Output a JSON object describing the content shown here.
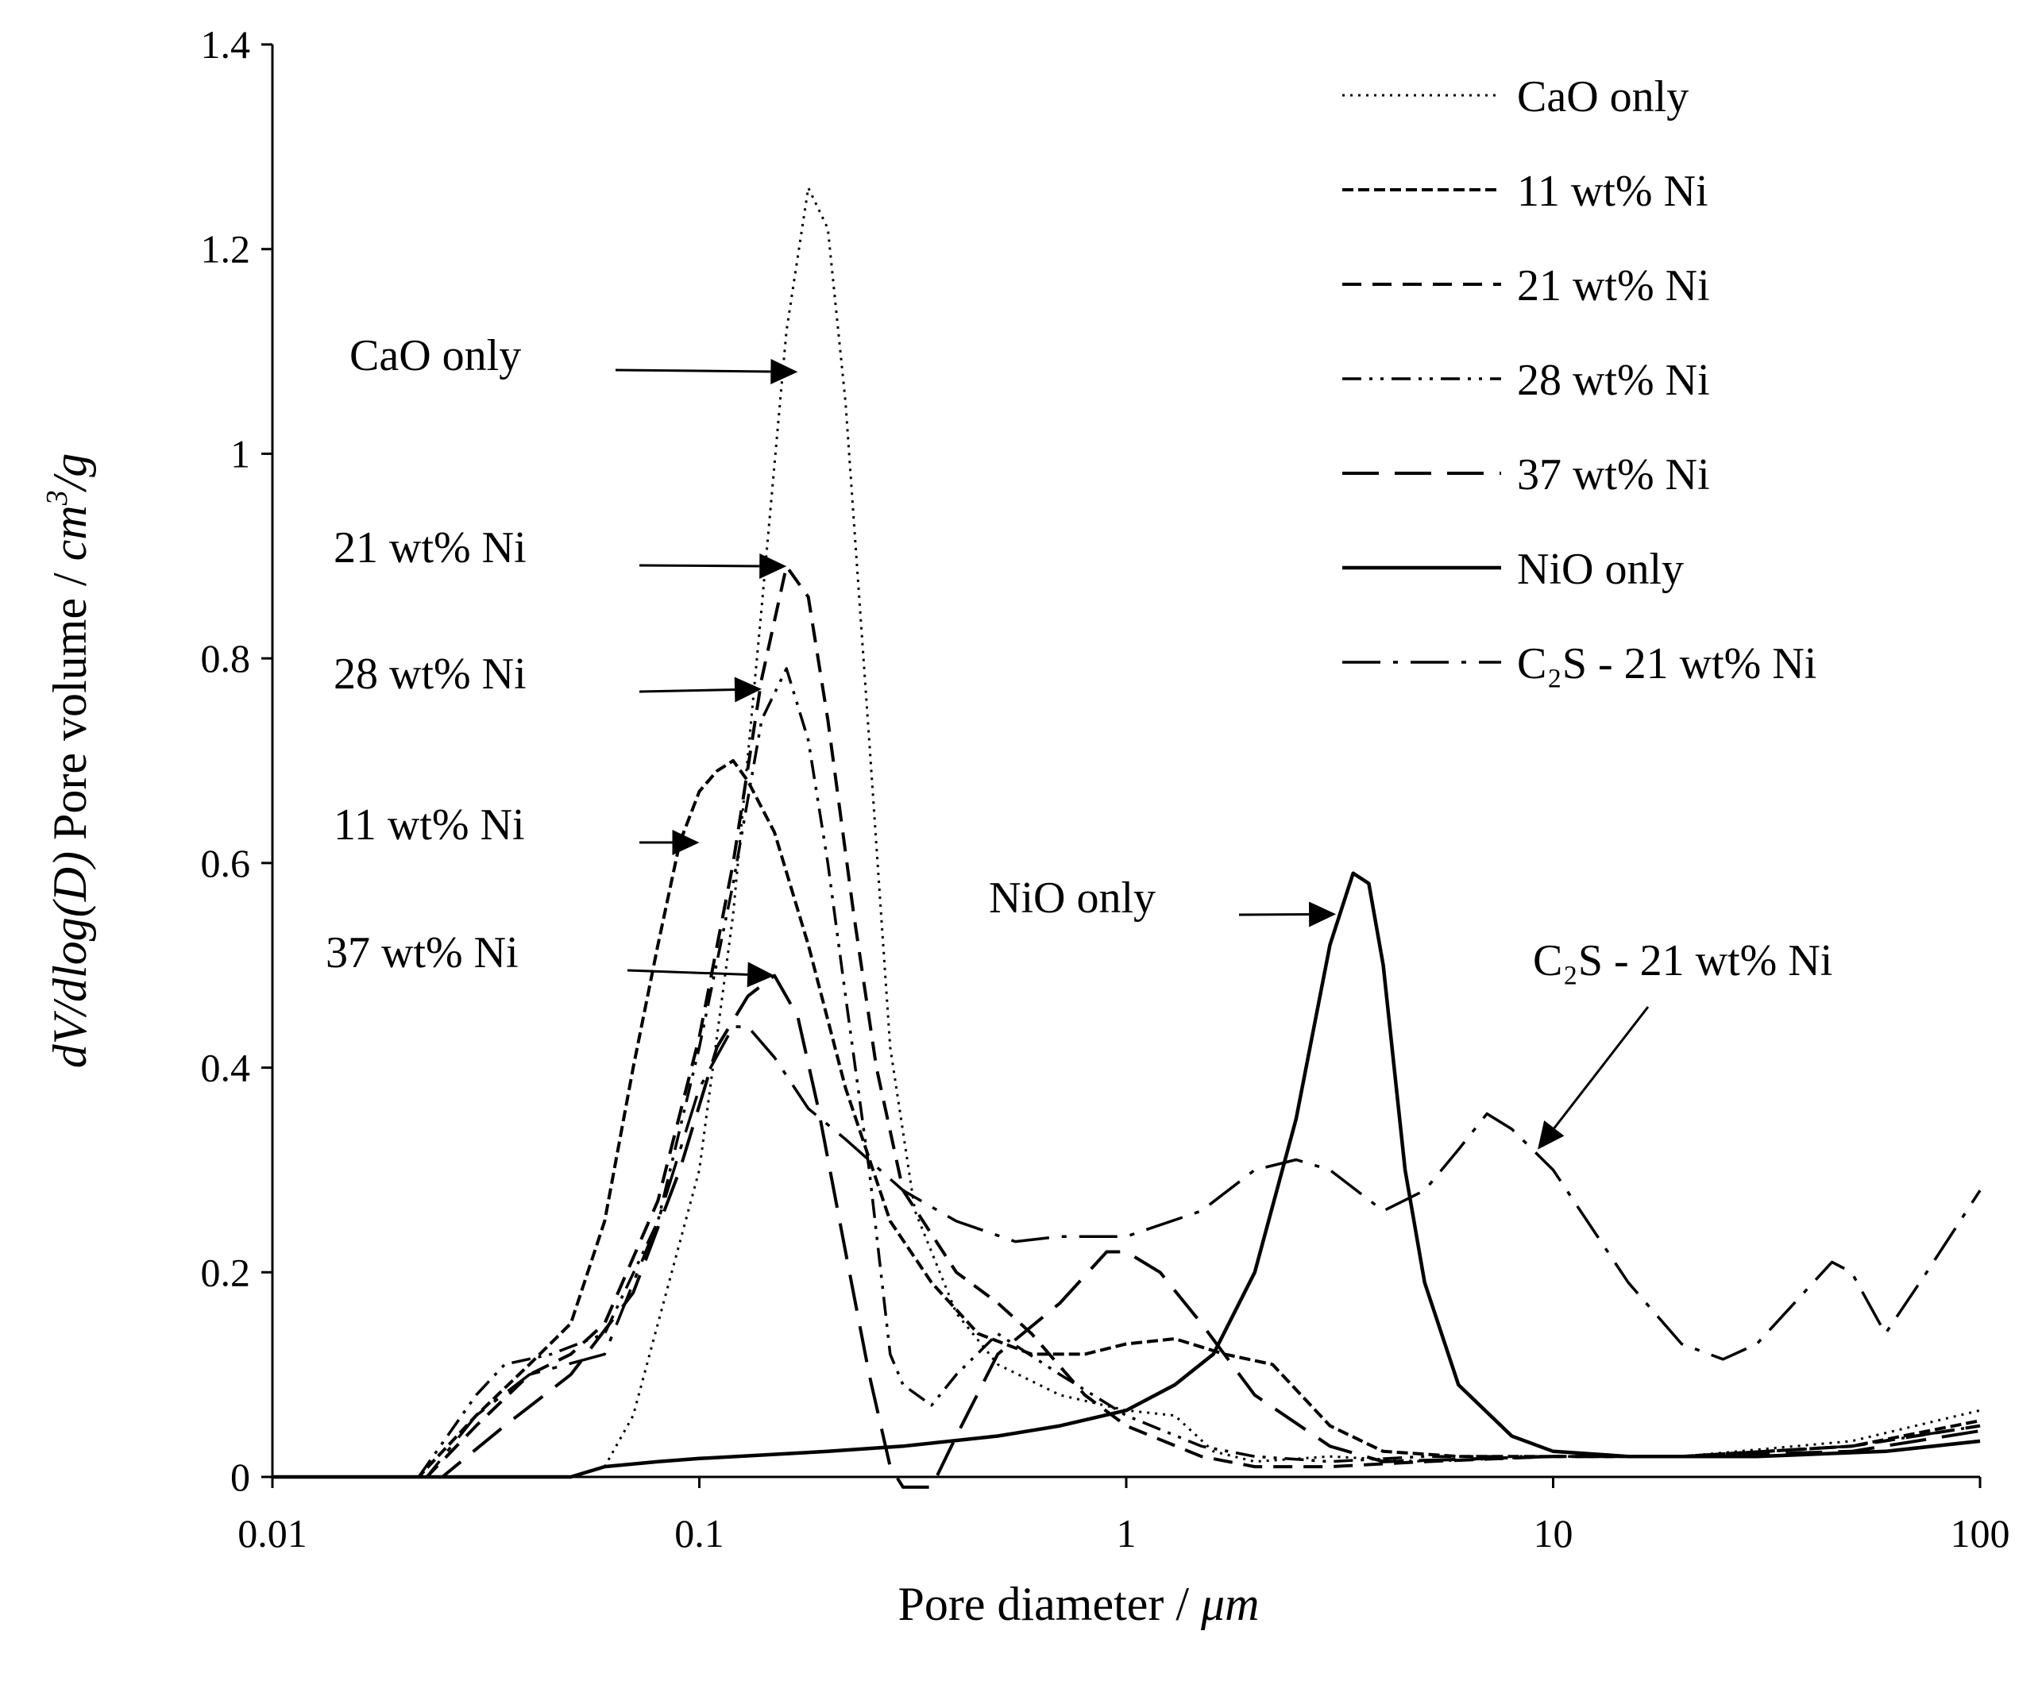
{
  "chart_data": {
    "type": "line",
    "title": "",
    "xlabel": "Pore diameter / ",
    "xlabel_unit": "μm",
    "ylabel": "Pore volume / ",
    "ylabel_prefix": "dV/dlog(D)",
    "ylabel_unit": "cm",
    "ylabel_unit_sup": "3",
    "ylabel_unit_suffix": "/g",
    "x_scale": "log",
    "xlim": [
      0.01,
      100
    ],
    "ylim": [
      0,
      1.4
    ],
    "x_ticks": [
      0.01,
      0.1,
      1,
      10,
      100
    ],
    "x_tick_labels": [
      "0.01",
      "0.1",
      "1",
      "10",
      "100"
    ],
    "y_ticks": [
      0,
      0.2,
      0.4,
      0.6,
      0.8,
      1.0,
      1.2,
      1.4
    ],
    "y_tick_labels": [
      "0",
      "0.2",
      "0.4",
      "0.6",
      "0.8",
      "1",
      "1.2",
      "1.4"
    ],
    "grid": false,
    "legend_position": "top-right",
    "series": [
      {
        "name": "CaO only",
        "dash": "dot",
        "points": [
          [
            0.01,
            0
          ],
          [
            0.05,
            0
          ],
          [
            0.06,
            0.01
          ],
          [
            0.07,
            0.06
          ],
          [
            0.08,
            0.15
          ],
          [
            0.1,
            0.3
          ],
          [
            0.12,
            0.55
          ],
          [
            0.14,
            0.85
          ],
          [
            0.16,
            1.12
          ],
          [
            0.18,
            1.26
          ],
          [
            0.2,
            1.22
          ],
          [
            0.22,
            1.05
          ],
          [
            0.25,
            0.72
          ],
          [
            0.28,
            0.42
          ],
          [
            0.32,
            0.26
          ],
          [
            0.4,
            0.16
          ],
          [
            0.5,
            0.11
          ],
          [
            0.7,
            0.08
          ],
          [
            1.0,
            0.065
          ],
          [
            1.3,
            0.06
          ],
          [
            1.6,
            0.025
          ],
          [
            2,
            0.015
          ],
          [
            3,
            0.02
          ],
          [
            5,
            0.015
          ],
          [
            10,
            0.02
          ],
          [
            20,
            0.02
          ],
          [
            50,
            0.035
          ],
          [
            100,
            0.065
          ]
        ]
      },
      {
        "name": "11 wt% Ni",
        "dash": "short",
        "points": [
          [
            0.01,
            0
          ],
          [
            0.022,
            0
          ],
          [
            0.03,
            0.06
          ],
          [
            0.04,
            0.11
          ],
          [
            0.05,
            0.15
          ],
          [
            0.06,
            0.25
          ],
          [
            0.07,
            0.4
          ],
          [
            0.08,
            0.52
          ],
          [
            0.09,
            0.62
          ],
          [
            0.1,
            0.67
          ],
          [
            0.11,
            0.69
          ],
          [
            0.12,
            0.7
          ],
          [
            0.13,
            0.68
          ],
          [
            0.15,
            0.63
          ],
          [
            0.18,
            0.52
          ],
          [
            0.22,
            0.38
          ],
          [
            0.28,
            0.25
          ],
          [
            0.35,
            0.19
          ],
          [
            0.45,
            0.14
          ],
          [
            0.6,
            0.12
          ],
          [
            0.8,
            0.12
          ],
          [
            1.0,
            0.13
          ],
          [
            1.3,
            0.135
          ],
          [
            1.7,
            0.12
          ],
          [
            2.2,
            0.11
          ],
          [
            3,
            0.05
          ],
          [
            4,
            0.025
          ],
          [
            6,
            0.02
          ],
          [
            10,
            0.02
          ],
          [
            20,
            0.02
          ],
          [
            50,
            0.03
          ],
          [
            100,
            0.055
          ]
        ]
      },
      {
        "name": "21 wt% Ni",
        "dash": "medium",
        "points": [
          [
            0.01,
            0
          ],
          [
            0.023,
            0
          ],
          [
            0.03,
            0.05
          ],
          [
            0.04,
            0.1
          ],
          [
            0.05,
            0.12
          ],
          [
            0.06,
            0.15
          ],
          [
            0.08,
            0.27
          ],
          [
            0.1,
            0.43
          ],
          [
            0.12,
            0.6
          ],
          [
            0.14,
            0.78
          ],
          [
            0.16,
            0.89
          ],
          [
            0.18,
            0.86
          ],
          [
            0.2,
            0.74
          ],
          [
            0.23,
            0.55
          ],
          [
            0.26,
            0.4
          ],
          [
            0.3,
            0.28
          ],
          [
            0.4,
            0.2
          ],
          [
            0.5,
            0.17
          ],
          [
            0.6,
            0.14
          ],
          [
            0.8,
            0.08
          ],
          [
            1.0,
            0.05
          ],
          [
            1.5,
            0.02
          ],
          [
            2,
            0.01
          ],
          [
            3,
            0.01
          ],
          [
            5,
            0.015
          ],
          [
            10,
            0.02
          ],
          [
            20,
            0.02
          ],
          [
            50,
            0.03
          ],
          [
            100,
            0.05
          ]
        ]
      },
      {
        "name": "28 wt% Ni",
        "dash": "dashdotdot",
        "points": [
          [
            0.01,
            0
          ],
          [
            0.022,
            0
          ],
          [
            0.03,
            0.08
          ],
          [
            0.035,
            0.11
          ],
          [
            0.045,
            0.12
          ],
          [
            0.06,
            0.14
          ],
          [
            0.08,
            0.25
          ],
          [
            0.1,
            0.42
          ],
          [
            0.12,
            0.58
          ],
          [
            0.14,
            0.74
          ],
          [
            0.16,
            0.79
          ],
          [
            0.18,
            0.72
          ],
          [
            0.2,
            0.6
          ],
          [
            0.22,
            0.47
          ],
          [
            0.25,
            0.3
          ],
          [
            0.28,
            0.12
          ],
          [
            0.3,
            0.09
          ],
          [
            0.35,
            0.07
          ],
          [
            0.4,
            0.1
          ],
          [
            0.5,
            0.14
          ],
          [
            0.7,
            0.1
          ],
          [
            1.0,
            0.06
          ],
          [
            1.5,
            0.03
          ],
          [
            2,
            0.02
          ],
          [
            3,
            0.015
          ],
          [
            5,
            0.02
          ],
          [
            10,
            0.02
          ],
          [
            20,
            0.02
          ],
          [
            50,
            0.03
          ],
          [
            100,
            0.05
          ]
        ]
      },
      {
        "name": "37 wt% Ni",
        "dash": "long",
        "points": [
          [
            0.01,
            0
          ],
          [
            0.025,
            0
          ],
          [
            0.035,
            0.05
          ],
          [
            0.05,
            0.1
          ],
          [
            0.07,
            0.18
          ],
          [
            0.09,
            0.3
          ],
          [
            0.11,
            0.42
          ],
          [
            0.13,
            0.47
          ],
          [
            0.15,
            0.49
          ],
          [
            0.17,
            0.45
          ],
          [
            0.19,
            0.36
          ],
          [
            0.22,
            0.22
          ],
          [
            0.25,
            0.1
          ],
          [
            0.28,
            0.01
          ],
          [
            0.3,
            -0.01
          ],
          [
            0.35,
            -0.01
          ],
          [
            0.4,
            0.04
          ],
          [
            0.5,
            0.12
          ],
          [
            0.7,
            0.17
          ],
          [
            0.9,
            0.22
          ],
          [
            1.0,
            0.22
          ],
          [
            1.2,
            0.2
          ],
          [
            1.5,
            0.15
          ],
          [
            2,
            0.08
          ],
          [
            3,
            0.03
          ],
          [
            4,
            0.015
          ],
          [
            10,
            0.02
          ],
          [
            20,
            0.02
          ],
          [
            50,
            0.025
          ],
          [
            100,
            0.045
          ]
        ]
      },
      {
        "name": "NiO only",
        "dash": "solid",
        "points": [
          [
            0.01,
            0
          ],
          [
            0.05,
            0
          ],
          [
            0.06,
            0.01
          ],
          [
            0.08,
            0.015
          ],
          [
            0.1,
            0.018
          ],
          [
            0.2,
            0.025
          ],
          [
            0.3,
            0.03
          ],
          [
            0.5,
            0.04
          ],
          [
            0.7,
            0.05
          ],
          [
            1.0,
            0.065
          ],
          [
            1.3,
            0.09
          ],
          [
            1.6,
            0.12
          ],
          [
            2.0,
            0.2
          ],
          [
            2.5,
            0.35
          ],
          [
            3.0,
            0.52
          ],
          [
            3.4,
            0.59
          ],
          [
            3.7,
            0.58
          ],
          [
            4.0,
            0.5
          ],
          [
            4.5,
            0.3
          ],
          [
            5.0,
            0.19
          ],
          [
            6.0,
            0.09
          ],
          [
            8,
            0.04
          ],
          [
            10,
            0.025
          ],
          [
            15,
            0.02
          ],
          [
            30,
            0.02
          ],
          [
            60,
            0.025
          ],
          [
            100,
            0.035
          ]
        ]
      },
      {
        "name": "C₂S - 21 wt% Ni",
        "dash": "longdashdot",
        "points": [
          [
            0.01,
            0
          ],
          [
            0.023,
            0
          ],
          [
            0.03,
            0.06
          ],
          [
            0.04,
            0.1
          ],
          [
            0.06,
            0.12
          ],
          [
            0.08,
            0.25
          ],
          [
            0.1,
            0.38
          ],
          [
            0.12,
            0.44
          ],
          [
            0.13,
            0.44
          ],
          [
            0.15,
            0.41
          ],
          [
            0.18,
            0.36
          ],
          [
            0.22,
            0.33
          ],
          [
            0.3,
            0.28
          ],
          [
            0.4,
            0.25
          ],
          [
            0.55,
            0.23
          ],
          [
            0.7,
            0.235
          ],
          [
            1.0,
            0.235
          ],
          [
            1.5,
            0.26
          ],
          [
            2.0,
            0.3
          ],
          [
            2.5,
            0.31
          ],
          [
            3.0,
            0.3
          ],
          [
            4.0,
            0.26
          ],
          [
            5,
            0.28
          ],
          [
            6,
            0.32
          ],
          [
            7,
            0.355
          ],
          [
            8,
            0.34
          ],
          [
            10,
            0.3
          ],
          [
            15,
            0.19
          ],
          [
            20,
            0.13
          ],
          [
            25,
            0.115
          ],
          [
            30,
            0.13
          ],
          [
            45,
            0.21
          ],
          [
            50,
            0.2
          ],
          [
            60,
            0.14
          ],
          [
            75,
            0.2
          ],
          [
            100,
            0.28
          ]
        ]
      }
    ],
    "annotations": [
      {
        "label": "CaO only",
        "target_x": 0.17,
        "target_y": 1.08
      },
      {
        "label": "21 wt% Ni",
        "target_x": 0.16,
        "target_y": 0.89
      },
      {
        "label": "28 wt% Ni",
        "target_x": 0.14,
        "target_y": 0.77
      },
      {
        "label": "11 wt% Ni",
        "target_x": 0.1,
        "target_y": 0.62
      },
      {
        "label": "37 wt% Ni",
        "target_x": 0.15,
        "target_y": 0.49
      },
      {
        "label": "NiO only",
        "target_x": 3.1,
        "target_y": 0.55
      },
      {
        "label": "C₂S - 21 wt% Ni",
        "target_x": 9.2,
        "target_y": 0.32
      }
    ]
  }
}
